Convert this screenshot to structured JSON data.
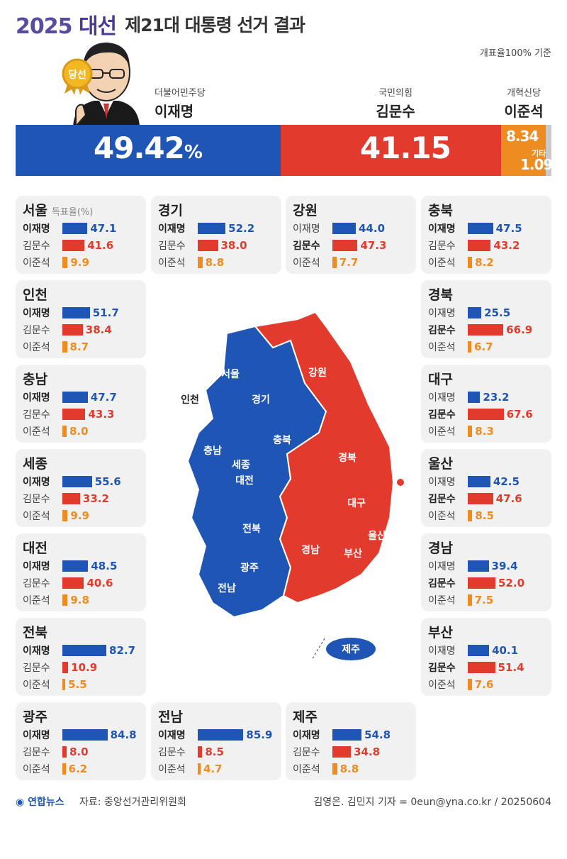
{
  "header": {
    "brand_year": "2025",
    "brand_word": "대선",
    "title": "제21대 대통령 선거 결과",
    "basis": "개표율100% 기준"
  },
  "winner_badge": "당선",
  "candidates": [
    {
      "party": "더불어민주당",
      "name": "이재명",
      "color": "#1f55b4"
    },
    {
      "party": "국민의힘",
      "name": "김문수",
      "color": "#e23a2c"
    },
    {
      "party": "개혁신당",
      "name": "이준석",
      "color": "#ef8c21"
    }
  ],
  "chart_data": {
    "type": "bar",
    "title": "제21대 대통령 선거 결과",
    "national": [
      {
        "name": "이재명",
        "value": 49.42,
        "label": "49.42",
        "unit": "%"
      },
      {
        "name": "김문수",
        "value": 41.15,
        "label": "41.15"
      },
      {
        "name": "이준석",
        "value": 8.34,
        "label": "8.34"
      },
      {
        "name": "기타",
        "value": 1.09,
        "label": "1.09"
      }
    ],
    "regions": [
      {
        "region": "서울",
        "values": [
          47.1,
          41.6,
          9.9
        ]
      },
      {
        "region": "경기",
        "values": [
          52.2,
          38.0,
          8.8
        ]
      },
      {
        "region": "강원",
        "values": [
          44.0,
          47.3,
          7.7
        ]
      },
      {
        "region": "충북",
        "values": [
          47.5,
          43.2,
          8.2
        ]
      },
      {
        "region": "인천",
        "values": [
          51.7,
          38.4,
          8.7
        ]
      },
      {
        "region": "경북",
        "values": [
          25.5,
          66.9,
          6.7
        ]
      },
      {
        "region": "충남",
        "values": [
          47.7,
          43.3,
          8.0
        ]
      },
      {
        "region": "대구",
        "values": [
          23.2,
          67.6,
          8.3
        ]
      },
      {
        "region": "세종",
        "values": [
          55.6,
          33.2,
          9.9
        ]
      },
      {
        "region": "울산",
        "values": [
          42.5,
          47.6,
          8.5
        ]
      },
      {
        "region": "대전",
        "values": [
          48.5,
          40.6,
          9.8
        ]
      },
      {
        "region": "경남",
        "values": [
          39.4,
          52.0,
          7.5
        ]
      },
      {
        "region": "전북",
        "values": [
          82.7,
          10.9,
          5.5
        ]
      },
      {
        "region": "부산",
        "values": [
          40.1,
          51.4,
          7.6
        ]
      },
      {
        "region": "광주",
        "values": [
          84.8,
          8.0,
          6.2
        ]
      },
      {
        "region": "전남",
        "values": [
          85.9,
          8.5,
          4.7
        ]
      },
      {
        "region": "제주",
        "values": [
          54.8,
          34.8,
          8.8
        ]
      }
    ],
    "series": [
      "이재명",
      "김문수",
      "이준석"
    ],
    "regions_unit": "득표율(%)"
  },
  "map_labels": {
    "blue": [
      "서울",
      "인천",
      "경기",
      "충남",
      "충북",
      "세종",
      "대전",
      "전북",
      "광주",
      "전남",
      "제주"
    ],
    "red": [
      "강원",
      "경북",
      "대구",
      "울산",
      "경남",
      "부산"
    ]
  },
  "footer": {
    "logo": "연합뉴스",
    "source": "자료: 중앙선거관리위원회",
    "credit": "김영은. 김민지 기자 = 0eun@yna.co.kr / 20250604"
  }
}
